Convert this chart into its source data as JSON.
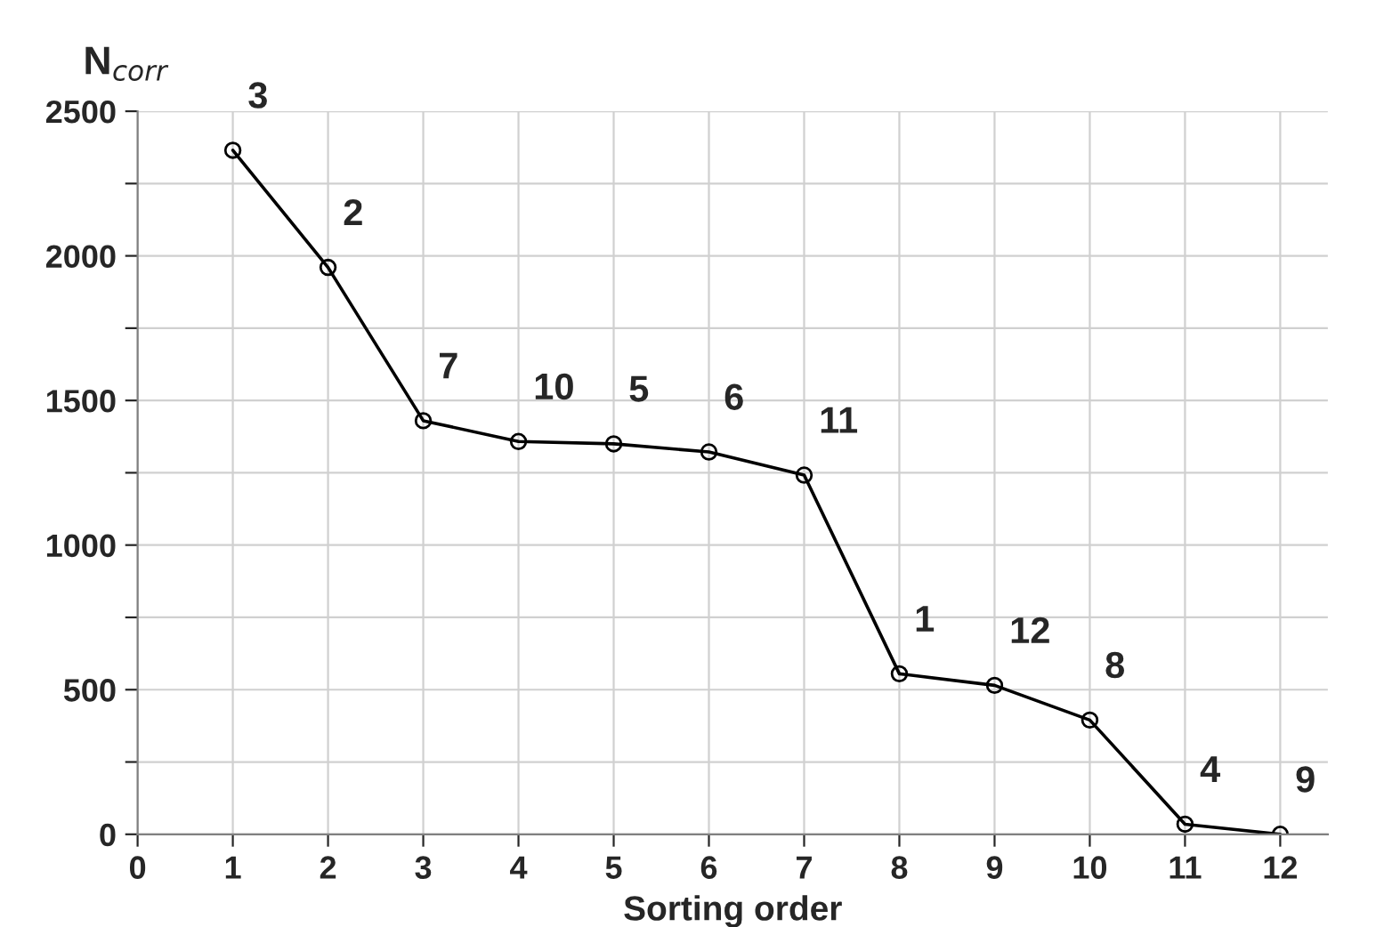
{
  "chart_data": {
    "type": "line",
    "xlabel": "Sorting order",
    "ylabel": "N$_{corr}$",
    "x": [
      1,
      2,
      3,
      4,
      5,
      6,
      7,
      8,
      9,
      10,
      11,
      12
    ],
    "series": [
      {
        "color": "#000000",
        "values": [
          2365,
          1960,
          1430,
          1358,
          1350,
          1322,
          1242,
          555,
          515,
          395,
          35,
          0
        ]
      }
    ],
    "xlim": [
      0,
      12.5
    ],
    "xticks": [
      0,
      1,
      2,
      3,
      4,
      5,
      6,
      7,
      8,
      9,
      10,
      11,
      12
    ],
    "ylim": [
      0,
      2500
    ],
    "yticks": [
      0,
      {
        "value": 250,
        "label": null
      },
      500,
      {
        "value": 750,
        "label": null
      },
      1000,
      {
        "value": 1250,
        "label": null
      },
      1500,
      {
        "value": 1750,
        "label": null
      },
      2000,
      {
        "value": 2250,
        "label": null
      },
      2500
    ],
    "grid": true,
    "marker": "circle",
    "line_style": "solid",
    "legend": false,
    "annotations": [
      {
        "text": "3",
        "x": 1,
        "y": 2365
      },
      {
        "text": "2",
        "x": 2,
        "y": 1960
      },
      {
        "text": "7",
        "x": 3,
        "y": 1430
      },
      {
        "text": "10",
        "x": 4,
        "y": 1358
      },
      {
        "text": "5",
        "x": 5,
        "y": 1350
      },
      {
        "text": "6",
        "x": 6,
        "y": 1322
      },
      {
        "text": "11",
        "x": 7,
        "y": 1242
      },
      {
        "text": "1",
        "x": 8,
        "y": 555
      },
      {
        "text": "12",
        "x": 9,
        "y": 515
      },
      {
        "text": "8",
        "x": 10,
        "y": 395
      },
      {
        "text": "4",
        "x": 11,
        "y": 35
      },
      {
        "text": "9",
        "x": 12,
        "y": 0
      }
    ]
  }
}
